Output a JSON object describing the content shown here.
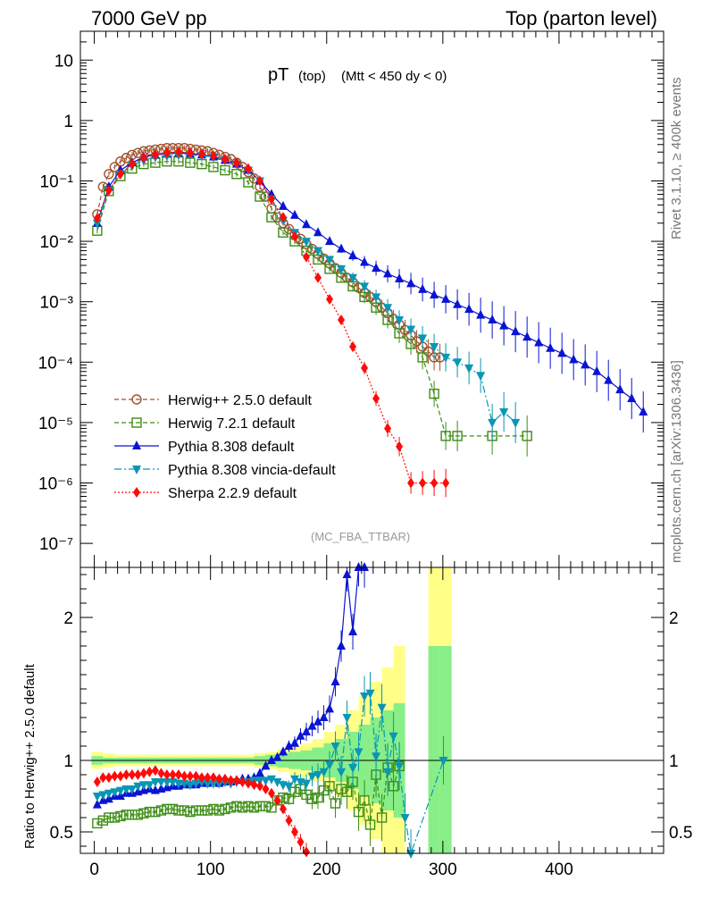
{
  "header": {
    "left": "7000 GeV pp",
    "right": "Top (parton level)"
  },
  "side_text": {
    "rivet": "Rivet 3.1.10, ≥ 400k events",
    "mcplots": "mcplots.cern.ch [arXiv:1306.3436]"
  },
  "chart_data": [
    {
      "type": "line",
      "panel": "main",
      "title_main": "pT",
      "title_sub": "(top)",
      "title_cut": "(Mtt < 450 dy < 0)",
      "analysis_label": "(MC_FBA_TTBAR)",
      "xlim": [
        -12,
        490
      ],
      "ylim": [
        4e-08,
        30
      ],
      "yscale": "log",
      "y_tick_labels": [
        "10⁻⁷",
        "10⁻⁶",
        "10⁻⁵",
        "10⁻⁴",
        "10⁻³",
        "10⁻²",
        "10⁻¹",
        "1",
        "10"
      ],
      "y_tick_values": [
        1e-07,
        1e-06,
        1e-05,
        0.0001,
        0.001,
        0.01,
        0.1,
        1,
        10
      ],
      "legend_position": "lower-left",
      "series": [
        {
          "name": "Herwig++ 2.5.0 default",
          "color": "#a0522d",
          "marker": "circle-open",
          "dash": "5,3",
          "x": [
            2.5,
            7.5,
            12.5,
            17.5,
            22.5,
            27.5,
            32.5,
            37.5,
            42.5,
            47.5,
            52.5,
            57.5,
            62.5,
            67.5,
            72.5,
            77.5,
            82.5,
            87.5,
            92.5,
            97.5,
            102.5,
            107.5,
            112.5,
            117.5,
            122.5,
            127.5,
            132.5,
            137.5,
            142.5,
            147.5,
            152.5,
            157.5,
            162.5,
            167.5,
            172.5,
            177.5,
            182.5,
            187.5,
            192.5,
            197.5,
            202.5,
            207.5,
            212.5,
            217.5,
            222.5,
            227.5,
            232.5,
            237.5,
            242.5,
            247.5,
            252.5,
            257.5,
            262.5,
            267.5,
            272.5,
            277.5,
            282.5,
            287.5,
            292.5,
            297.5
          ],
          "y": [
            0.028,
            0.08,
            0.13,
            0.17,
            0.21,
            0.24,
            0.27,
            0.29,
            0.31,
            0.32,
            0.33,
            0.34,
            0.35,
            0.35,
            0.35,
            0.35,
            0.34,
            0.33,
            0.32,
            0.31,
            0.29,
            0.27,
            0.25,
            0.23,
            0.2,
            0.17,
            0.14,
            0.11,
            0.08,
            0.055,
            0.035,
            0.025,
            0.02,
            0.016,
            0.013,
            0.011,
            0.009,
            0.0075,
            0.0062,
            0.0052,
            0.0043,
            0.0036,
            0.003,
            0.0025,
            0.0021,
            0.0017,
            0.0014,
            0.0012,
            0.001,
            0.0008,
            0.00065,
            0.00052,
            0.00042,
            0.00034,
            0.00028,
            0.00022,
            0.00018,
            0.00015,
            0.00012,
            0.00012
          ]
        },
        {
          "name": "Herwig 7.2.1 default",
          "color": "#3c8c14",
          "marker": "square-open",
          "dash": "5,3",
          "x": [
            2.5,
            12.5,
            22.5,
            32.5,
            42.5,
            52.5,
            62.5,
            72.5,
            82.5,
            92.5,
            102.5,
            112.5,
            122.5,
            132.5,
            142.5,
            152.5,
            162.5,
            172.5,
            182.5,
            192.5,
            202.5,
            212.5,
            222.5,
            232.5,
            242.5,
            252.5,
            262.5,
            272.5,
            282.5,
            292.5,
            302.5,
            312.5,
            342.5,
            372.5
          ],
          "y": [
            0.015,
            0.068,
            0.12,
            0.16,
            0.19,
            0.2,
            0.21,
            0.21,
            0.2,
            0.19,
            0.17,
            0.15,
            0.13,
            0.095,
            0.055,
            0.025,
            0.014,
            0.01,
            0.007,
            0.005,
            0.0035,
            0.0025,
            0.0018,
            0.0012,
            0.0008,
            0.0005,
            0.0003,
            0.0002,
            0.00012,
            3e-05,
            6e-06,
            6e-06,
            6e-06,
            6e-06
          ]
        },
        {
          "name": "Pythia 8.308 default",
          "color": "#0a14d2",
          "marker": "triangle-up",
          "dash": "",
          "x": [
            2.5,
            12.5,
            22.5,
            32.5,
            42.5,
            52.5,
            62.5,
            72.5,
            82.5,
            92.5,
            102.5,
            112.5,
            122.5,
            132.5,
            142.5,
            152.5,
            162.5,
            172.5,
            182.5,
            192.5,
            202.5,
            212.5,
            222.5,
            232.5,
            242.5,
            252.5,
            262.5,
            272.5,
            282.5,
            292.5,
            302.5,
            312.5,
            322.5,
            332.5,
            342.5,
            352.5,
            362.5,
            372.5,
            382.5,
            392.5,
            402.5,
            412.5,
            422.5,
            432.5,
            442.5,
            452.5,
            462.5,
            472.5
          ],
          "y": [
            0.02,
            0.08,
            0.15,
            0.2,
            0.25,
            0.27,
            0.28,
            0.29,
            0.28,
            0.27,
            0.25,
            0.22,
            0.19,
            0.15,
            0.1,
            0.06,
            0.038,
            0.027,
            0.019,
            0.014,
            0.01,
            0.0075,
            0.0058,
            0.0045,
            0.0036,
            0.0029,
            0.0024,
            0.002,
            0.0016,
            0.0013,
            0.0011,
            0.0009,
            0.00075,
            0.0006,
            0.0005,
            0.0004,
            0.00032,
            0.00026,
            0.00021,
            0.00017,
            0.00014,
            0.00011,
            9e-05,
            7e-05,
            5e-05,
            3.5e-05,
            2.5e-05,
            1.5e-05
          ]
        },
        {
          "name": "Pythia 8.308 vincia-default",
          "color": "#0a96b4",
          "marker": "triangle-down",
          "dash": "8,3,2,3",
          "x": [
            2.5,
            12.5,
            22.5,
            32.5,
            42.5,
            52.5,
            62.5,
            72.5,
            82.5,
            92.5,
            102.5,
            112.5,
            122.5,
            132.5,
            142.5,
            152.5,
            162.5,
            172.5,
            182.5,
            192.5,
            202.5,
            212.5,
            222.5,
            232.5,
            242.5,
            252.5,
            262.5,
            272.5,
            282.5,
            292.5,
            302.5,
            312.5,
            322.5,
            332.5,
            342.5,
            352.5,
            362.5
          ],
          "y": [
            0.02,
            0.07,
            0.13,
            0.18,
            0.22,
            0.25,
            0.26,
            0.27,
            0.27,
            0.26,
            0.25,
            0.22,
            0.19,
            0.15,
            0.1,
            0.05,
            0.022,
            0.014,
            0.01,
            0.007,
            0.005,
            0.0035,
            0.0025,
            0.0018,
            0.0012,
            0.0008,
            0.0005,
            0.00035,
            0.00025,
            0.00018,
            0.00012,
            0.0001,
            8e-05,
            6e-05,
            1e-05,
            1.5e-05,
            1e-05
          ]
        },
        {
          "name": "Sherpa 2.2.9 default",
          "color": "#ff0a0a",
          "marker": "diamond",
          "dash": "2,2",
          "x": [
            2.5,
            12.5,
            22.5,
            32.5,
            42.5,
            52.5,
            62.5,
            72.5,
            82.5,
            92.5,
            102.5,
            112.5,
            122.5,
            132.5,
            142.5,
            152.5,
            162.5,
            172.5,
            182.5,
            192.5,
            202.5,
            212.5,
            222.5,
            232.5,
            242.5,
            252.5,
            262.5,
            272.5,
            282.5,
            292.5,
            302.5
          ],
          "y": [
            0.024,
            0.07,
            0.13,
            0.19,
            0.24,
            0.27,
            0.29,
            0.3,
            0.29,
            0.28,
            0.26,
            0.23,
            0.2,
            0.16,
            0.1,
            0.05,
            0.025,
            0.012,
            0.0055,
            0.0025,
            0.0011,
            0.0005,
            0.00018,
            8e-05,
            2.5e-05,
            8e-06,
            4e-06,
            1e-06,
            1e-06,
            1e-06,
            1e-06
          ]
        }
      ]
    },
    {
      "type": "line",
      "panel": "ratio",
      "ylabel": "Ratio to Herwig++ 2.5.0 default",
      "xlim": [
        -12,
        490
      ],
      "ylim": [
        0.35,
        2.35
      ],
      "y_ticks": [
        0.5,
        1,
        2
      ],
      "y_tick_labels": [
        "0.5",
        "1",
        "2"
      ],
      "x_ticks": [
        0,
        100,
        200,
        300,
        400
      ],
      "x_tick_labels": [
        "0",
        "100",
        "200",
        "300",
        "400"
      ],
      "reference_band": {
        "x": [
          2.5,
          12.5,
          22.5,
          32.5,
          42.5,
          52.5,
          62.5,
          72.5,
          82.5,
          92.5,
          102.5,
          112.5,
          122.5,
          132.5,
          142.5,
          152.5,
          162.5,
          172.5,
          182.5,
          192.5,
          202.5,
          212.5,
          222.5,
          232.5,
          242.5,
          252.5,
          262.5,
          292.5,
          302.5
        ],
        "half_width_yellow": [
          0.06,
          0.05,
          0.04,
          0.04,
          0.04,
          0.04,
          0.04,
          0.04,
          0.04,
          0.04,
          0.04,
          0.04,
          0.04,
          0.04,
          0.05,
          0.06,
          0.08,
          0.1,
          0.12,
          0.15,
          0.2,
          0.25,
          0.35,
          0.45,
          0.55,
          0.65,
          0.8,
          1.5,
          1.5
        ],
        "half_width_green": [
          0.03,
          0.02,
          0.02,
          0.02,
          0.02,
          0.02,
          0.02,
          0.02,
          0.02,
          0.02,
          0.02,
          0.02,
          0.02,
          0.02,
          0.03,
          0.04,
          0.05,
          0.06,
          0.07,
          0.09,
          0.12,
          0.15,
          0.2,
          0.25,
          0.3,
          0.35,
          0.4,
          0.8,
          0.8
        ]
      },
      "series": [
        {
          "name": "Herwig 7.2.1 default",
          "color": "#3c8c14",
          "x": [
            2.5,
            7.5,
            12.5,
            17.5,
            22.5,
            27.5,
            32.5,
            37.5,
            42.5,
            47.5,
            52.5,
            57.5,
            62.5,
            67.5,
            72.5,
            77.5,
            82.5,
            87.5,
            92.5,
            97.5,
            102.5,
            107.5,
            112.5,
            117.5,
            122.5,
            127.5,
            132.5,
            137.5,
            142.5,
            147.5,
            152.5,
            157.5,
            162.5,
            167.5,
            172.5,
            177.5,
            182.5,
            187.5,
            192.5,
            197.5,
            202.5,
            207.5,
            212.5,
            217.5,
            222.5,
            227.5,
            232.5,
            237.5,
            242.5,
            247.5,
            252.5,
            257.5,
            262.5
          ],
          "y": [
            0.56,
            0.58,
            0.6,
            0.6,
            0.61,
            0.62,
            0.62,
            0.62,
            0.63,
            0.64,
            0.64,
            0.65,
            0.66,
            0.66,
            0.65,
            0.65,
            0.64,
            0.65,
            0.65,
            0.65,
            0.66,
            0.65,
            0.66,
            0.67,
            0.68,
            0.67,
            0.68,
            0.67,
            0.68,
            0.68,
            0.67,
            0.72,
            0.74,
            0.73,
            0.78,
            0.8,
            0.76,
            0.73,
            0.74,
            0.79,
            0.82,
            0.7,
            0.8,
            0.78,
            0.85,
            0.64,
            0.72,
            0.55,
            0.9,
            0.6,
            0.95,
            0.82,
            0.96
          ]
        },
        {
          "name": "Pythia 8.308 default",
          "color": "#0a14d2",
          "x": [
            2.5,
            7.5,
            12.5,
            17.5,
            22.5,
            27.5,
            32.5,
            37.5,
            42.5,
            47.5,
            52.5,
            57.5,
            62.5,
            67.5,
            72.5,
            77.5,
            82.5,
            87.5,
            92.5,
            97.5,
            102.5,
            107.5,
            112.5,
            117.5,
            122.5,
            127.5,
            132.5,
            137.5,
            142.5,
            147.5,
            152.5,
            157.5,
            162.5,
            167.5,
            172.5,
            177.5,
            182.5,
            187.5,
            192.5,
            197.5,
            202.5,
            207.5,
            212.5,
            217.5,
            222.5,
            227.5,
            232.5
          ],
          "y": [
            0.69,
            0.72,
            0.73,
            0.75,
            0.75,
            0.77,
            0.77,
            0.78,
            0.79,
            0.8,
            0.79,
            0.8,
            0.81,
            0.82,
            0.82,
            0.83,
            0.83,
            0.83,
            0.84,
            0.84,
            0.85,
            0.84,
            0.85,
            0.85,
            0.86,
            0.87,
            0.87,
            0.88,
            0.91,
            0.96,
            1.0,
            1.02,
            1.06,
            1.1,
            1.12,
            1.17,
            1.2,
            1.24,
            1.27,
            1.3,
            1.36,
            1.55,
            1.8,
            2.3,
            1.9,
            2.4,
            2.4
          ]
        },
        {
          "name": "Pythia 8.308 vincia-default",
          "color": "#0a96b4",
          "x": [
            2.5,
            7.5,
            12.5,
            17.5,
            22.5,
            27.5,
            32.5,
            37.5,
            42.5,
            47.5,
            52.5,
            57.5,
            62.5,
            67.5,
            72.5,
            77.5,
            82.5,
            87.5,
            92.5,
            97.5,
            102.5,
            107.5,
            112.5,
            117.5,
            122.5,
            127.5,
            132.5,
            137.5,
            142.5,
            147.5,
            152.5,
            157.5,
            162.5,
            167.5,
            172.5,
            177.5,
            182.5,
            187.5,
            192.5,
            197.5,
            202.5,
            207.5,
            212.5,
            217.5,
            222.5,
            227.5,
            232.5,
            237.5,
            242.5,
            247.5,
            252.5,
            257.5,
            262.5,
            267.5,
            272.5,
            300.5
          ],
          "y": [
            0.75,
            0.76,
            0.77,
            0.78,
            0.79,
            0.8,
            0.8,
            0.82,
            0.83,
            0.83,
            0.85,
            0.85,
            0.85,
            0.85,
            0.84,
            0.84,
            0.83,
            0.84,
            0.85,
            0.84,
            0.84,
            0.84,
            0.85,
            0.84,
            0.85,
            0.85,
            0.85,
            0.86,
            0.86,
            0.86,
            0.87,
            0.85,
            0.83,
            0.82,
            0.87,
            0.85,
            0.84,
            0.89,
            0.9,
            0.92,
            0.97,
            1.1,
            0.92,
            1.3,
            0.95,
            1.06,
            1.45,
            1.47,
            1.03,
            1.37,
            0.92,
            1.17,
            0.96,
            0.6,
            0.3,
            1.0
          ]
        },
        {
          "name": "Sherpa 2.2.9 default",
          "color": "#ff0a0a",
          "x": [
            2.5,
            7.5,
            12.5,
            17.5,
            22.5,
            27.5,
            32.5,
            37.5,
            42.5,
            47.5,
            52.5,
            57.5,
            62.5,
            67.5,
            72.5,
            77.5,
            82.5,
            87.5,
            92.5,
            97.5,
            102.5,
            107.5,
            112.5,
            117.5,
            122.5,
            127.5,
            132.5,
            137.5,
            142.5,
            147.5,
            152.5,
            157.5,
            162.5,
            167.5,
            172.5,
            177.5,
            182.5
          ],
          "y": [
            0.85,
            0.88,
            0.88,
            0.89,
            0.89,
            0.9,
            0.9,
            0.9,
            0.91,
            0.92,
            0.93,
            0.91,
            0.9,
            0.9,
            0.9,
            0.89,
            0.89,
            0.89,
            0.88,
            0.88,
            0.88,
            0.87,
            0.87,
            0.86,
            0.86,
            0.85,
            0.84,
            0.83,
            0.82,
            0.8,
            0.77,
            0.72,
            0.66,
            0.58,
            0.5,
            0.43,
            0.36
          ]
        }
      ]
    }
  ]
}
